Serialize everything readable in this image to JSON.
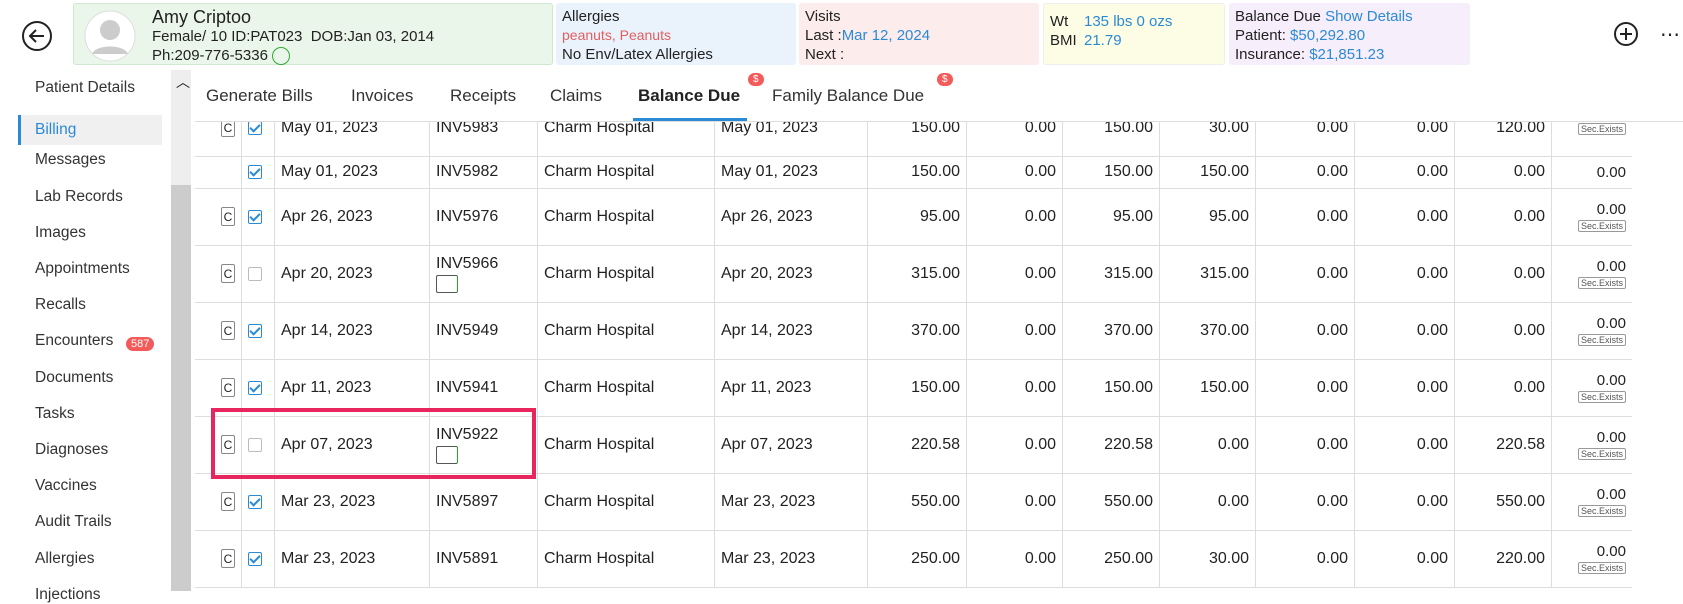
{
  "header": {
    "name": "Amy Criptoo",
    "gender_age": "Female/ 10",
    "id": "ID:PAT023",
    "dob": "DOB:Jan 03, 2014",
    "phone": "Ph:209-776-5336",
    "allergies": {
      "title": "Allergies",
      "items": "peanuts, Peanuts",
      "env": "No Env/Latex Allergies"
    },
    "visits": {
      "title": "Visits",
      "last_label": "Last :",
      "last": "Mar 12, 2024",
      "next_label": "Next :"
    },
    "vitals": {
      "wt_label": "Wt",
      "wt": "135 lbs 0 ozs",
      "bmi_label": "BMI",
      "bmi": "21.79"
    },
    "balance": {
      "title": "Balance Due",
      "link": "Show Details",
      "patient_label": "Patient:",
      "patient": "$50,292.80",
      "insurance_label": "Insurance:",
      "insurance": "$21,851.23"
    }
  },
  "sidebar": {
    "items": [
      "Patient Details",
      "Billing",
      "Messages",
      "Lab Records",
      "Images",
      "Appointments",
      "Recalls",
      "Encounters",
      "Documents",
      "Tasks",
      "Diagnoses",
      "Vaccines",
      "Audit Trails",
      "Allergies",
      "Injections"
    ],
    "active": 1,
    "badge_item": 7,
    "badge": "587"
  },
  "tabs": {
    "items": [
      "Generate Bills",
      "Invoices",
      "Receipts",
      "Claims",
      "Balance Due",
      "Family Balance Due"
    ],
    "active": 4,
    "badge": "$",
    "badge_items": [
      4,
      5
    ]
  },
  "table": {
    "button": "C",
    "badge": "Sec.Exists",
    "rows": [
      {
        "button": true,
        "checked": true,
        "date": "May 01, 2023",
        "invoice": "INV5983",
        "icon": false,
        "facility": "Charm Hospital",
        "service_date": "May 01, 2023",
        "amounts": [
          "150.00",
          "0.00",
          "150.00",
          "30.00",
          "0.00",
          "0.00",
          "120.00"
        ],
        "last": null,
        "sec": true
      },
      {
        "button": false,
        "checked": true,
        "date": "May 01, 2023",
        "invoice": "INV5982",
        "icon": false,
        "facility": "Charm Hospital",
        "service_date": "May 01, 2023",
        "amounts": [
          "150.00",
          "0.00",
          "150.00",
          "150.00",
          "0.00",
          "0.00",
          "0.00"
        ],
        "last": "0.00",
        "sec": false
      },
      {
        "button": true,
        "checked": true,
        "date": "Apr 26, 2023",
        "invoice": "INV5976",
        "icon": false,
        "facility": "Charm Hospital",
        "service_date": "Apr 26, 2023",
        "amounts": [
          "95.00",
          "0.00",
          "95.00",
          "95.00",
          "0.00",
          "0.00",
          "0.00"
        ],
        "last": "0.00",
        "sec": true
      },
      {
        "button": true,
        "checked": false,
        "date": "Apr 20, 2023",
        "invoice": "INV5966",
        "icon": true,
        "facility": "Charm Hospital",
        "service_date": "Apr 20, 2023",
        "amounts": [
          "315.00",
          "0.00",
          "315.00",
          "315.00",
          "0.00",
          "0.00",
          "0.00"
        ],
        "last": "0.00",
        "sec": true
      },
      {
        "button": true,
        "checked": true,
        "date": "Apr 14, 2023",
        "invoice": "INV5949",
        "icon": false,
        "facility": "Charm Hospital",
        "service_date": "Apr 14, 2023",
        "amounts": [
          "370.00",
          "0.00",
          "370.00",
          "370.00",
          "0.00",
          "0.00",
          "0.00"
        ],
        "last": "0.00",
        "sec": true
      },
      {
        "button": true,
        "checked": true,
        "date": "Apr 11, 2023",
        "invoice": "INV5941",
        "icon": false,
        "facility": "Charm Hospital",
        "service_date": "Apr 11, 2023",
        "amounts": [
          "150.00",
          "0.00",
          "150.00",
          "150.00",
          "0.00",
          "0.00",
          "0.00"
        ],
        "last": "0.00",
        "sec": true
      },
      {
        "button": true,
        "checked": false,
        "date": "Apr 07, 2023",
        "invoice": "INV5922",
        "icon": true,
        "facility": "Charm Hospital",
        "service_date": "Apr 07, 2023",
        "amounts": [
          "220.58",
          "0.00",
          "220.58",
          "0.00",
          "0.00",
          "0.00",
          "220.58"
        ],
        "last": "0.00",
        "sec": true,
        "highlighted": true
      },
      {
        "button": true,
        "checked": true,
        "date": "Mar 23, 2023",
        "invoice": "INV5897",
        "icon": false,
        "facility": "Charm Hospital",
        "service_date": "Mar 23, 2023",
        "amounts": [
          "550.00",
          "0.00",
          "550.00",
          "0.00",
          "0.00",
          "0.00",
          "550.00"
        ],
        "last": "0.00",
        "sec": true
      },
      {
        "button": true,
        "checked": true,
        "date": "Mar 23, 2023",
        "invoice": "INV5891",
        "icon": false,
        "facility": "Charm Hospital",
        "service_date": "Mar 23, 2023",
        "amounts": [
          "250.00",
          "0.00",
          "250.00",
          "30.00",
          "0.00",
          "0.00",
          "220.00"
        ],
        "last": "0.00",
        "sec": true
      }
    ]
  }
}
